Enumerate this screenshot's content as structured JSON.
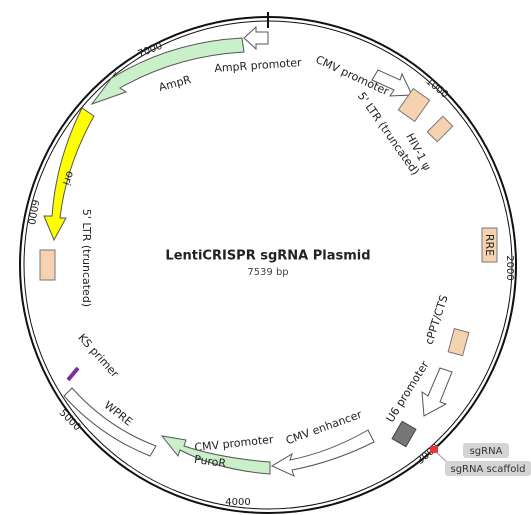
{
  "plasmid": {
    "title": "LentiCRISPR sgRNA Plasmid",
    "length": "7539 bp"
  },
  "ticks": [
    "1000",
    "2000",
    "3000",
    "4000",
    "5000",
    "6000",
    "7000"
  ],
  "features": [
    {
      "label": "AmpR promoter"
    },
    {
      "label": "AmpR"
    },
    {
      "label": "CMV promoter"
    },
    {
      "label": "5' LTR (truncated)"
    },
    {
      "label": "HIV-1 ψ"
    },
    {
      "label": "RRE"
    },
    {
      "label": "cPPT/CTS"
    },
    {
      "label": "U6 promoter"
    },
    {
      "label": "sgRNA"
    },
    {
      "label": "sgRNA scaffold"
    },
    {
      "label": "CMV enhancer"
    },
    {
      "label": "CMV promoter"
    },
    {
      "label": "PuroR"
    },
    {
      "label": "WPRE"
    },
    {
      "label": "KS primer"
    },
    {
      "label": "5' LTR (truncated)"
    },
    {
      "label": "ori"
    }
  ]
}
